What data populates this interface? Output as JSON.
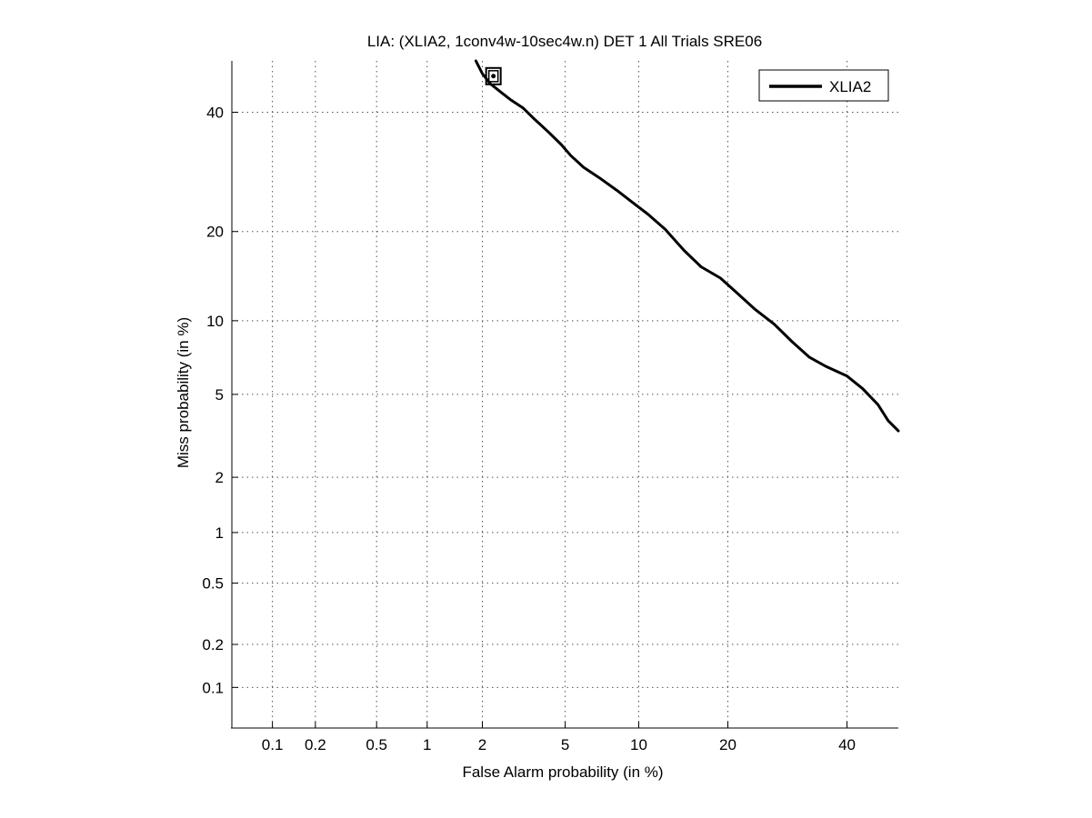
{
  "chart_data": {
    "type": "line",
    "scale": "probit (normal deviate) on both axes",
    "title": "LIA: (XLIA2, 1conv4w-10sec4w.n) DET 1 All Trials SRE06",
    "xlabel": "False Alarm probability (in %)",
    "ylabel": "Miss probability (in %)",
    "xlim": [
      0.05,
      50
    ],
    "ylim": [
      0.05,
      50
    ],
    "x_ticks": [
      0.1,
      0.2,
      0.5,
      1,
      2,
      5,
      10,
      20,
      40
    ],
    "x_tick_labels": [
      "0.1",
      "0.2",
      "0.5",
      "1",
      "2",
      "5",
      "10",
      "20",
      "40"
    ],
    "y_ticks": [
      0.1,
      0.2,
      0.5,
      1,
      2,
      5,
      10,
      20,
      40
    ],
    "y_tick_labels": [
      "0.1",
      "0.2",
      "0.5",
      "1",
      "2",
      "5",
      "10",
      "20",
      "40"
    ],
    "grid": true,
    "legend_position": "top-right",
    "series": [
      {
        "name": "XLIA2",
        "color": "#000000",
        "x": [
          1.85,
          2.0,
          2.2,
          2.5,
          2.8,
          3.2,
          3.6,
          4.2,
          4.8,
          5.3,
          6.0,
          7.0,
          8.2,
          9.5,
          10.8,
          12.5,
          14.5,
          16.5,
          19.0,
          21.0,
          24.0,
          27.0,
          30.0,
          33.0,
          36.0,
          40.0,
          43.0,
          46.0,
          48.0,
          50.0
        ],
        "y": [
          50.0,
          47.5,
          45.5,
          43.8,
          42.3,
          40.8,
          38.8,
          36.3,
          34.0,
          32.0,
          30.0,
          28.2,
          26.2,
          24.2,
          22.5,
          20.3,
          17.5,
          15.5,
          14.2,
          12.8,
          11.0,
          9.7,
          8.3,
          7.2,
          6.6,
          6.0,
          5.3,
          4.5,
          3.8,
          3.4
        ]
      }
    ],
    "min_dcf_marker": {
      "x": 2.28,
      "y": 47.0,
      "shape": "square"
    }
  }
}
